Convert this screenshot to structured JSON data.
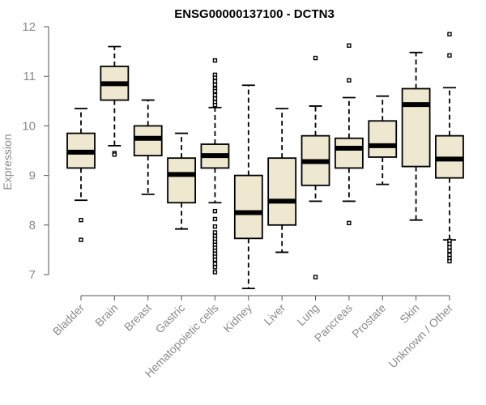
{
  "chart_data": {
    "type": "boxplot",
    "title": "ENSG00000137100 - DCTN3",
    "xlabel": "",
    "ylabel": "Expression",
    "ylim": [
      7,
      12
    ],
    "yticks": [
      7,
      8,
      9,
      10,
      11,
      12
    ],
    "colors": {
      "box_fill": "#efe8d0",
      "stroke": "#000000",
      "axis": "#555555",
      "text": "#8a8a8a"
    },
    "categories": [
      "Bladder",
      "Brain",
      "Breast",
      "Gastric",
      "Hematopoietic cells",
      "Kidney",
      "Liver",
      "Lung",
      "Pancreas",
      "Prostate",
      "Skin",
      "Unknown / Other"
    ],
    "boxes": [
      {
        "label": "Bladder",
        "whisker_low": 8.5,
        "q1": 9.15,
        "median": 9.47,
        "q3": 9.85,
        "whisker_high": 10.35,
        "outliers": [
          8.1,
          7.7
        ]
      },
      {
        "label": "Brain",
        "whisker_low": 9.6,
        "q1": 10.52,
        "median": 10.85,
        "q3": 11.2,
        "whisker_high": 11.6,
        "outliers": [
          9.45,
          9.42
        ]
      },
      {
        "label": "Breast",
        "whisker_low": 8.62,
        "q1": 9.4,
        "median": 9.75,
        "q3": 10.0,
        "whisker_high": 10.52,
        "outliers": []
      },
      {
        "label": "Gastric",
        "whisker_low": 7.92,
        "q1": 8.45,
        "median": 9.02,
        "q3": 9.35,
        "whisker_high": 9.85,
        "outliers": []
      },
      {
        "label": "Hematopoietic cells",
        "whisker_low": 8.45,
        "q1": 9.15,
        "median": 9.4,
        "q3": 9.63,
        "whisker_high": 10.37,
        "outliers": [
          11.32,
          11.03,
          10.97,
          10.9,
          10.83,
          10.75,
          10.7,
          10.62,
          10.55,
          10.48,
          10.42,
          8.28,
          8.12,
          7.97,
          7.85,
          7.78,
          7.72,
          7.66,
          7.6,
          7.54,
          7.48,
          7.42,
          7.36,
          7.3,
          7.22,
          7.15,
          7.05
        ]
      },
      {
        "label": "Kidney",
        "whisker_low": 6.72,
        "q1": 7.73,
        "median": 8.25,
        "q3": 9.0,
        "whisker_high": 10.82,
        "outliers": []
      },
      {
        "label": "Liver",
        "whisker_low": 7.45,
        "q1": 8.0,
        "median": 8.48,
        "q3": 9.35,
        "whisker_high": 10.35,
        "outliers": []
      },
      {
        "label": "Lung",
        "whisker_low": 8.48,
        "q1": 8.8,
        "median": 9.28,
        "q3": 9.8,
        "whisker_high": 10.4,
        "outliers": [
          11.37,
          6.95
        ]
      },
      {
        "label": "Pancreas",
        "whisker_low": 8.48,
        "q1": 9.15,
        "median": 9.55,
        "q3": 9.75,
        "whisker_high": 10.57,
        "outliers": [
          11.62,
          10.92,
          8.04
        ]
      },
      {
        "label": "Prostate",
        "whisker_low": 8.82,
        "q1": 9.37,
        "median": 9.6,
        "q3": 10.1,
        "whisker_high": 10.6,
        "outliers": []
      },
      {
        "label": "Skin",
        "whisker_low": 8.1,
        "q1": 9.18,
        "median": 10.43,
        "q3": 10.75,
        "whisker_high": 11.48,
        "outliers": []
      },
      {
        "label": "Unknown / Other",
        "whisker_low": 7.7,
        "q1": 8.95,
        "median": 9.33,
        "q3": 9.8,
        "whisker_high": 10.77,
        "outliers": [
          11.85,
          11.42,
          7.68,
          7.62,
          7.55,
          7.48,
          7.4,
          7.33,
          7.27
        ]
      }
    ]
  }
}
